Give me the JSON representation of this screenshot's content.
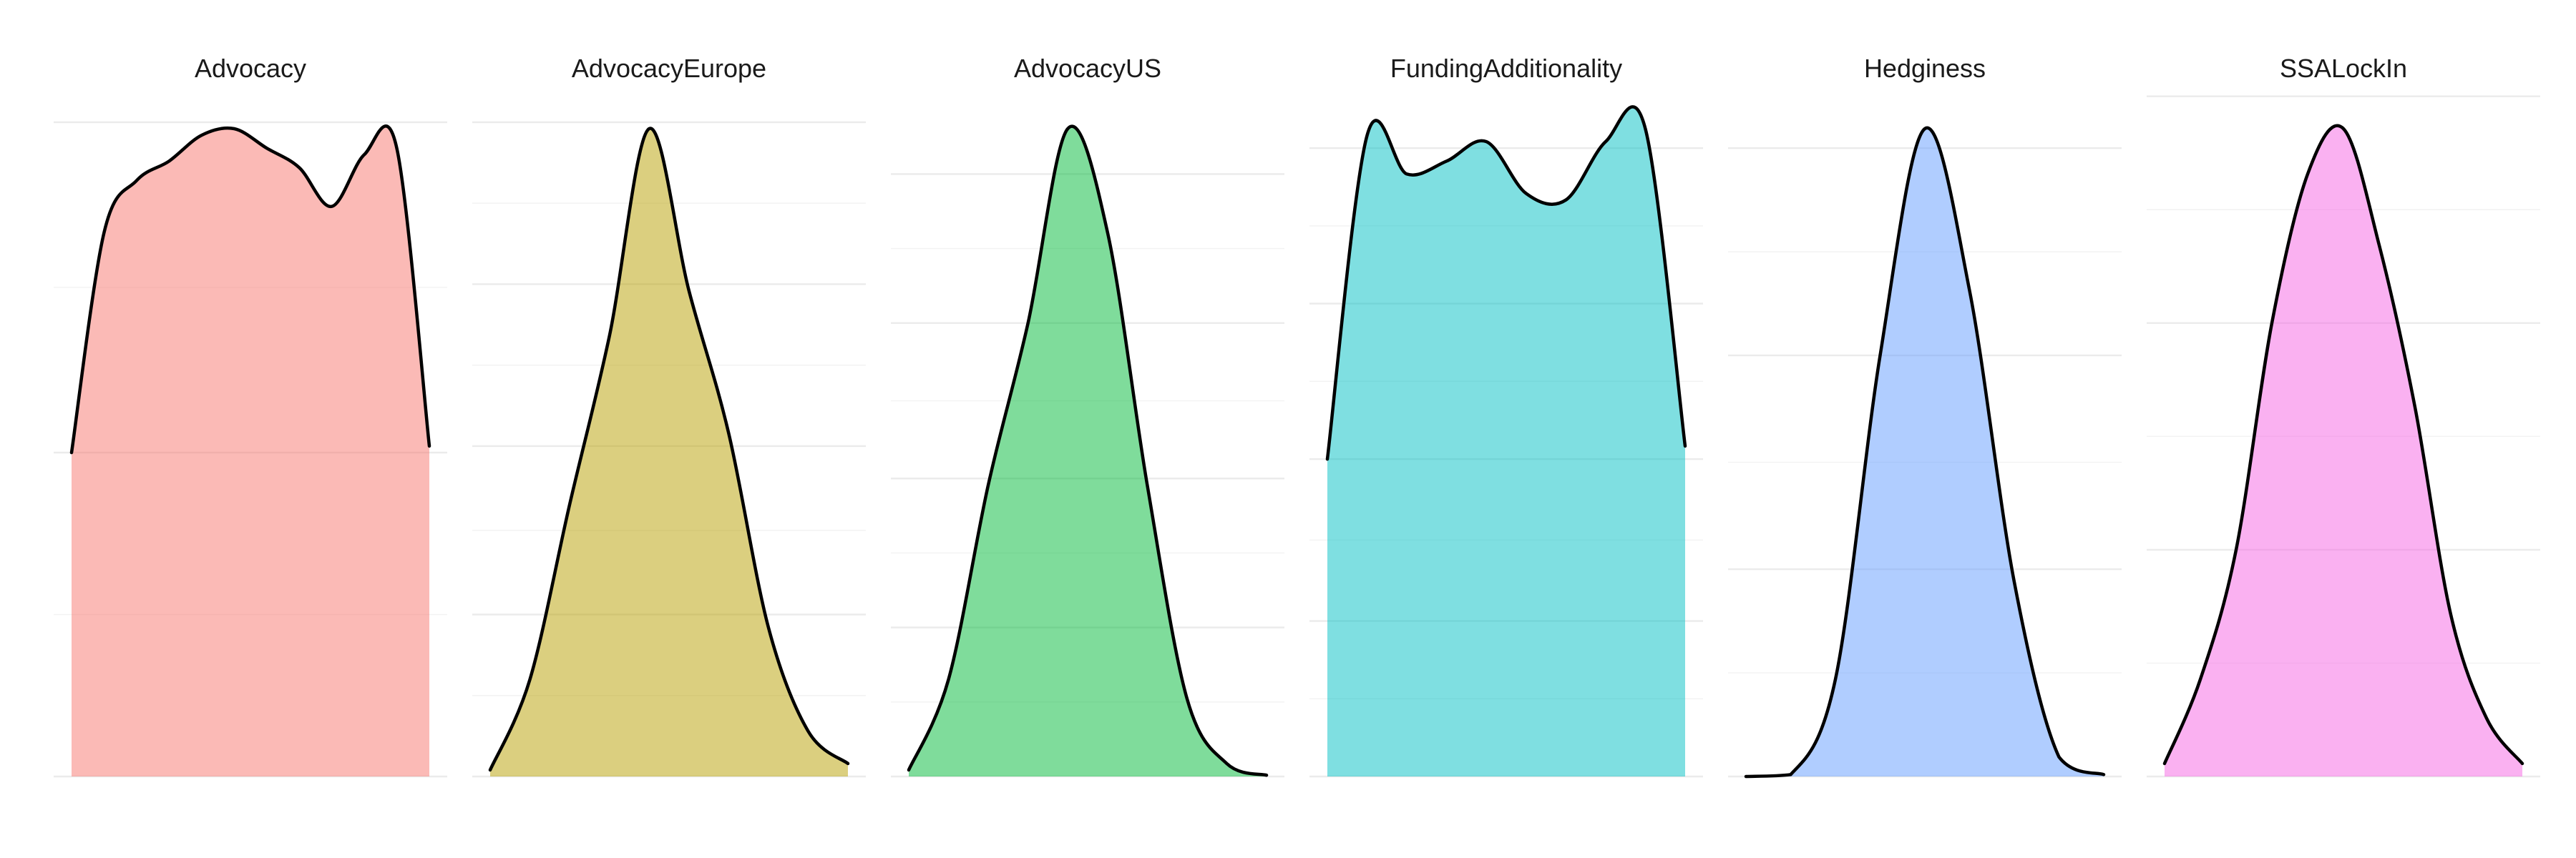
{
  "chart_data": {
    "type": "area",
    "chart_kind": "density small multiples",
    "grid": true,
    "axes_labels_shown": false,
    "legend": "none",
    "panels": [
      {
        "title": "Advocacy",
        "color": "#F8766D",
        "density": [
          0.5,
          0.84,
          0.92,
          0.95,
          0.99,
          1.0,
          0.97,
          0.94,
          0.88,
          0.96,
          0.97,
          0.51
        ],
        "gridlines": [
          0.5,
          1.01
        ]
      },
      {
        "title": "AdvocacyEurope",
        "color": "#B79F00",
        "density": [
          0.01,
          0.15,
          0.42,
          0.68,
          1.0,
          0.75,
          0.53,
          0.23,
          0.07,
          0.02
        ],
        "gridlines": [
          0.25,
          0.51,
          0.76,
          1.01
        ]
      },
      {
        "title": "AdvocacyUS",
        "color": "#00BA38",
        "density": [
          0.01,
          0.15,
          0.45,
          0.7,
          1.0,
          0.84,
          0.45,
          0.12,
          0.02,
          0.002
        ],
        "gridlines": [
          0.23,
          0.46,
          0.7,
          0.93
        ]
      },
      {
        "title": "FundingAdditionality",
        "color": "#00BFC4",
        "density": [
          0.49,
          0.99,
          0.93,
          0.95,
          0.98,
          0.9,
          0.89,
          0.98,
          1.0,
          0.51
        ],
        "gridlines": [
          0.24,
          0.49,
          0.73,
          0.97
        ]
      },
      {
        "title": "Hedginess",
        "color": "#619CFF",
        "density": [
          0.0,
          0.003,
          0.15,
          0.65,
          1.0,
          0.75,
          0.3,
          0.03,
          0.003
        ],
        "gridlines": [
          0.32,
          0.65,
          0.97
        ]
      },
      {
        "title": "SSALockIn",
        "color": "#F564E3",
        "density": [
          0.02,
          0.15,
          0.35,
          0.7,
          0.93,
          1.0,
          0.82,
          0.57,
          0.25,
          0.09,
          0.02
        ],
        "gridlines": [
          0.35,
          0.7,
          1.05
        ]
      }
    ]
  }
}
